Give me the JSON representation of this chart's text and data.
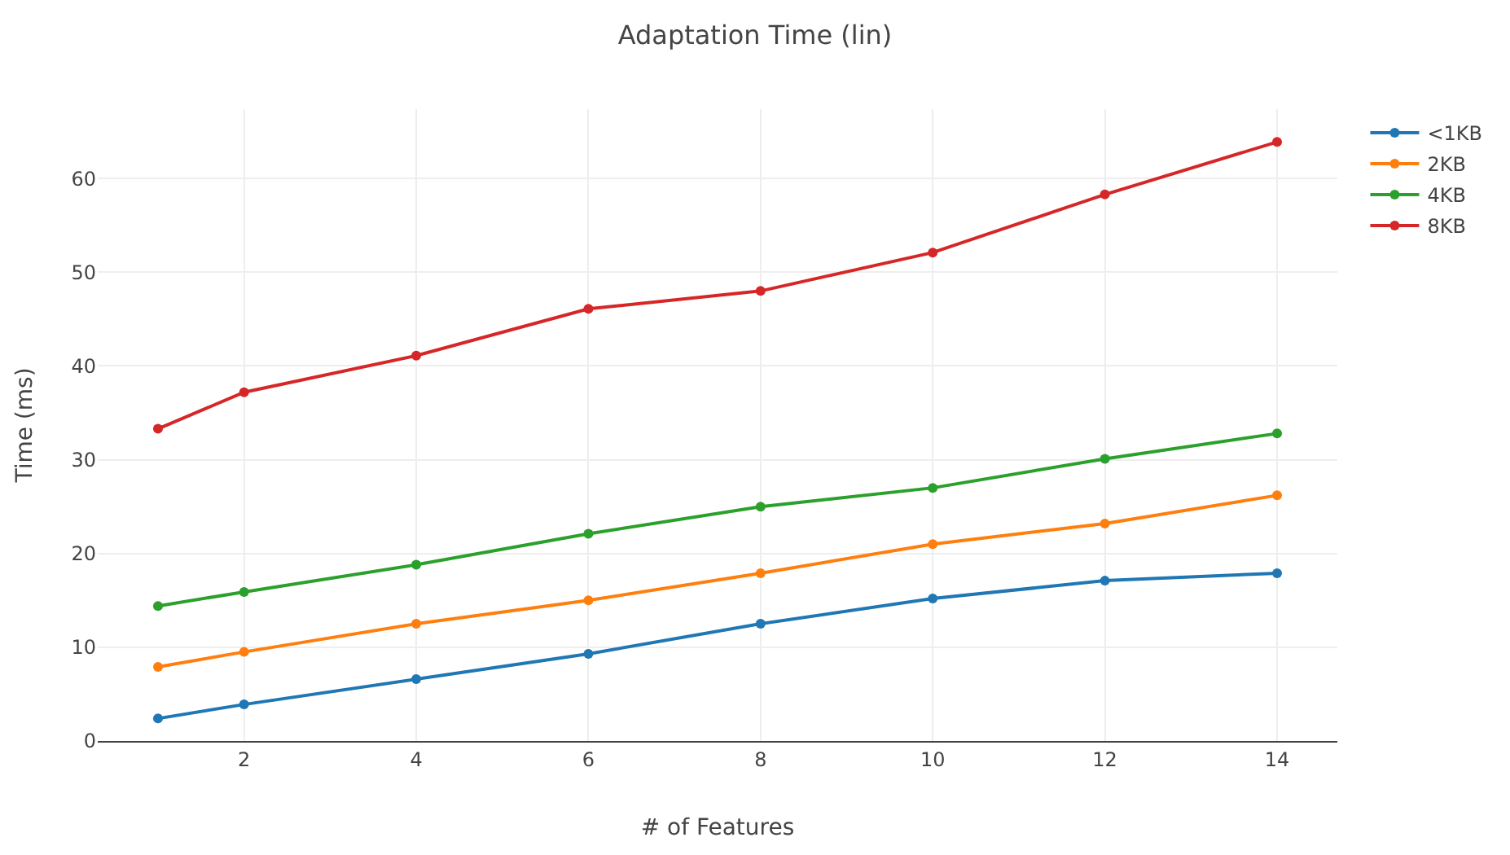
{
  "chart_data": {
    "type": "line",
    "title": "Adaptation Time (lin)",
    "xlabel": "# of Features",
    "ylabel": "Time (ms)",
    "x": [
      1,
      2,
      4,
      6,
      8,
      10,
      12,
      14
    ],
    "series": [
      {
        "name": "<1KB",
        "color": "#1f77b4",
        "values": [
          2.4,
          3.9,
          6.6,
          9.3,
          12.5,
          15.2,
          17.1,
          17.9
        ]
      },
      {
        "name": "2KB",
        "color": "#ff7f0e",
        "values": [
          7.9,
          9.5,
          12.5,
          15.0,
          17.9,
          21.0,
          23.2,
          26.2
        ]
      },
      {
        "name": "4KB",
        "color": "#2ca02c",
        "values": [
          14.4,
          15.9,
          18.8,
          22.1,
          25.0,
          27.0,
          30.1,
          32.8
        ]
      },
      {
        "name": "8KB",
        "color": "#d62728",
        "values": [
          33.3,
          37.2,
          41.1,
          46.1,
          48.0,
          52.1,
          58.3,
          63.9
        ]
      }
    ],
    "xlim": [
      0.3,
      14.7
    ],
    "ylim": [
      0,
      67.4
    ],
    "xticks": [
      2,
      4,
      6,
      8,
      10,
      12,
      14
    ],
    "yticks": [
      0,
      10,
      20,
      30,
      40,
      50,
      60
    ],
    "grid": true,
    "legend": "top right",
    "marker": "circle",
    "line_style": "solid"
  }
}
